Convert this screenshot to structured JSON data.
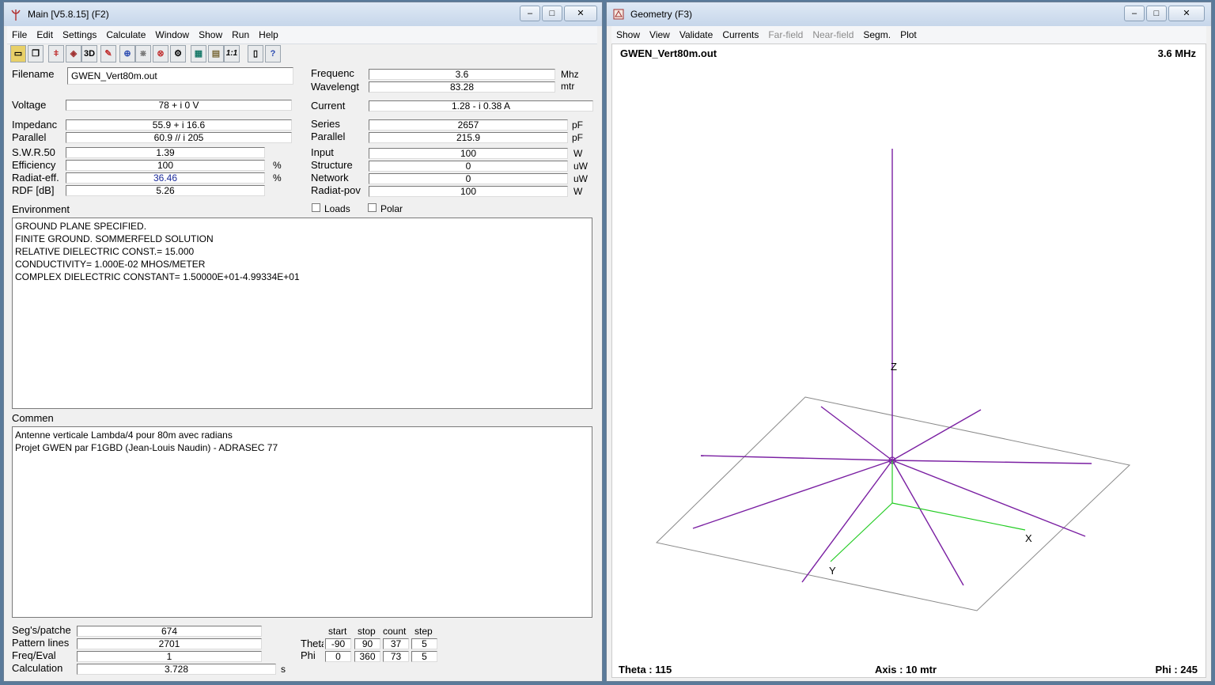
{
  "main_window": {
    "title": "Main [V5.8.15]  (F2)",
    "menu": [
      "File",
      "Edit",
      "Settings",
      "Calculate",
      "Window",
      "Show",
      "Run",
      "Help"
    ],
    "toolbar": [
      "open-icon",
      "copy-icon",
      "antenna-icon",
      "geometry-icon",
      "3D",
      "edit-icon",
      "nec-icon",
      "grid-icon",
      "pattern-icon",
      "config-icon",
      "calculator-icon",
      "optimizer-icon",
      "1:1",
      "book-icon",
      "help-icon"
    ],
    "fields": {
      "filename_label": "Filename",
      "filename": "GWEN_Vert80m.out",
      "frequency_label": "Frequenc",
      "frequency": "3.6",
      "frequency_unit": "Mhz",
      "wavelength_label": "Wavelengt",
      "wavelength": "83.28",
      "wavelength_unit": "mtr",
      "voltage_label": "Voltage",
      "voltage": "78 + i 0 V",
      "current_label": "Current",
      "current": "1.28 - i 0.38 A",
      "impedance_label": "Impedanc",
      "impedance": "55.9 + i 16.6",
      "series_label": "Series",
      "series": "2657",
      "series_unit": "pF",
      "parallel_label": "Parallel",
      "parallel_z": "60.9 // i 205",
      "parallel2_label": "Parallel",
      "parallel_c": "215.9",
      "parallel_unit": "pF",
      "swr_label": "S.W.R.50",
      "swr": "1.39",
      "input_label": "Input",
      "input": "100",
      "input_unit": "W",
      "efficiency_label": "Efficiency",
      "efficiency": "100",
      "efficiency_unit": "%",
      "structure_label": "Structure",
      "structure": "0",
      "structure_unit": "uW",
      "radeff_label": "Radiat-eff.",
      "radeff": "36.46",
      "radeff_unit": "%",
      "network_label": "Network",
      "network": "0",
      "network_unit": "uW",
      "rdf_label": "RDF [dB]",
      "rdf": "5.26",
      "radpow_label": "Radiat-pov",
      "radpow": "100",
      "radpow_unit": "W",
      "loads_label": "Loads",
      "polar_label": "Polar"
    },
    "environment_label": "Environment",
    "environment_lines": [
      "GROUND PLANE SPECIFIED.",
      "FINITE GROUND.  SOMMERFELD SOLUTION",
      "RELATIVE DIELECTRIC CONST.= 15.000",
      "CONDUCTIVITY= 1.000E-02 MHOS/METER",
      "COMPLEX DIELECTRIC CONSTANT= 1.50000E+01-4.99334E+01"
    ],
    "comment_label": "Commen",
    "comment_lines": [
      "Antenne verticale Lambda/4 pour 80m avec radians",
      "Projet GWEN par F1GBD (Jean-Louis Naudin) - ADRASEC 77"
    ],
    "bottom": {
      "segs_label": "Seg's/patche",
      "segs": "674",
      "pattern_label": "Pattern lines",
      "pattern": "2701",
      "freq_label": "Freq/Eval",
      "freq": "1",
      "calc_label": "Calculation",
      "calc": "3.728",
      "calc_unit": "s",
      "col_start": "start",
      "col_stop": "stop",
      "col_count": "count",
      "col_step": "step",
      "theta_label": "Theta",
      "theta_start": "-90",
      "theta_stop": "90",
      "theta_count": "37",
      "theta_step": "5",
      "phi_label": "Phi",
      "phi_start": "0",
      "phi_stop": "360",
      "phi_count": "73",
      "phi_step": "5"
    }
  },
  "geometry_window": {
    "title": "Geometry   (F3)",
    "menu": [
      {
        "label": "Show",
        "enabled": true
      },
      {
        "label": "View",
        "enabled": true
      },
      {
        "label": "Validate",
        "enabled": true
      },
      {
        "label": "Currents",
        "enabled": true
      },
      {
        "label": "Far-field",
        "enabled": false
      },
      {
        "label": "Near-field",
        "enabled": false
      },
      {
        "label": "Segm.",
        "enabled": true
      },
      {
        "label": "Plot",
        "enabled": true
      }
    ],
    "filename": "GWEN_Vert80m.out",
    "frequency": "3.6 MHz",
    "axis_z": "Z",
    "axis_x": "X",
    "axis_y": "Y",
    "theta": "Theta : 115",
    "axis": "Axis : 10 mtr",
    "phi": "Phi : 245",
    "colors": {
      "wire": "#7a1fa2",
      "axis": "#22cc22",
      "ground": "#8a8a8a"
    }
  }
}
